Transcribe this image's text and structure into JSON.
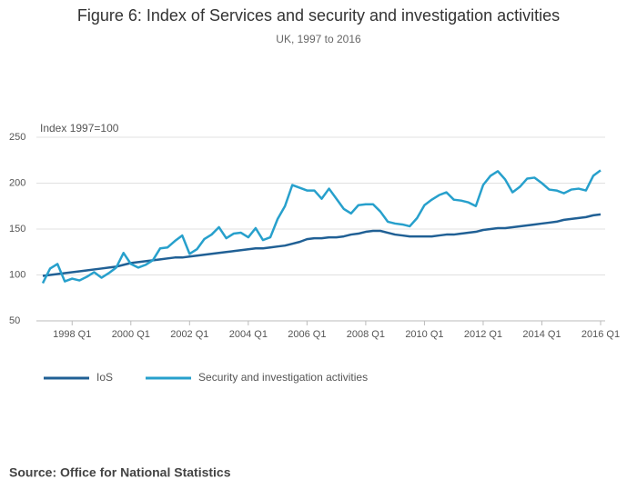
{
  "chart_data": {
    "type": "line",
    "title": "Figure 6: Index of Services and security and investigation activities",
    "subtitle": "UK, 1997 to 2016",
    "y_label": "Index 1997=100",
    "source": "Source: Office for National Statistics",
    "categories": [
      null,
      null,
      null,
      null,
      "1998 Q1",
      null,
      null,
      null,
      null,
      null,
      null,
      null,
      "2000 Q1",
      null,
      null,
      null,
      null,
      null,
      null,
      null,
      "2002 Q1",
      null,
      null,
      null,
      null,
      null,
      null,
      null,
      "2004 Q1",
      null,
      null,
      null,
      null,
      null,
      null,
      null,
      "2006 Q1",
      null,
      null,
      null,
      null,
      null,
      null,
      null,
      "2008 Q1",
      null,
      null,
      null,
      null,
      null,
      null,
      null,
      "2010 Q1",
      null,
      null,
      null,
      null,
      null,
      null,
      null,
      "2012 Q1",
      null,
      null,
      null,
      null,
      null,
      null,
      null,
      "2014 Q1",
      null,
      null,
      null,
      null,
      null,
      null,
      null,
      "2016 Q1"
    ],
    "series": [
      {
        "name": "IoS",
        "color": "#206095",
        "values": [
          99,
          100,
          101,
          102,
          103,
          104,
          105,
          106,
          107,
          108,
          109,
          111,
          113,
          114,
          115,
          116,
          117,
          118,
          119,
          119,
          120,
          121,
          122,
          123,
          124,
          125,
          126,
          127,
          128,
          129,
          129,
          130,
          131,
          132,
          134,
          136,
          139,
          140,
          140,
          141,
          141,
          142,
          144,
          145,
          147,
          148,
          148,
          146,
          144,
          143,
          142,
          142,
          142,
          142,
          143,
          144,
          144,
          145,
          146,
          147,
          149,
          150,
          151,
          151,
          152,
          153,
          154,
          155,
          156,
          157,
          158,
          160,
          161,
          162,
          163,
          165,
          166
        ]
      },
      {
        "name": "Security and investigation activities",
        "color": "#27a0cc",
        "values": [
          91,
          107,
          112,
          93,
          96,
          94,
          98,
          103,
          97,
          102,
          108,
          124,
          112,
          108,
          111,
          116,
          129,
          130,
          137,
          143,
          123,
          128,
          139,
          144,
          152,
          140,
          145,
          146,
          141,
          151,
          138,
          141,
          161,
          175,
          198,
          195,
          192,
          192,
          183,
          194,
          183,
          172,
          167,
          176,
          177,
          177,
          169,
          158,
          156,
          155,
          153,
          162,
          176,
          182,
          187,
          190,
          182,
          181,
          179,
          175,
          198,
          208,
          213,
          204,
          190,
          196,
          205,
          206,
          200,
          193,
          192,
          189,
          193,
          194,
          192,
          208,
          214
        ]
      }
    ],
    "ylim": [
      50,
      250
    ],
    "yticks": [
      50,
      100,
      150,
      200,
      250
    ],
    "grid": true,
    "legend": "bottom"
  }
}
